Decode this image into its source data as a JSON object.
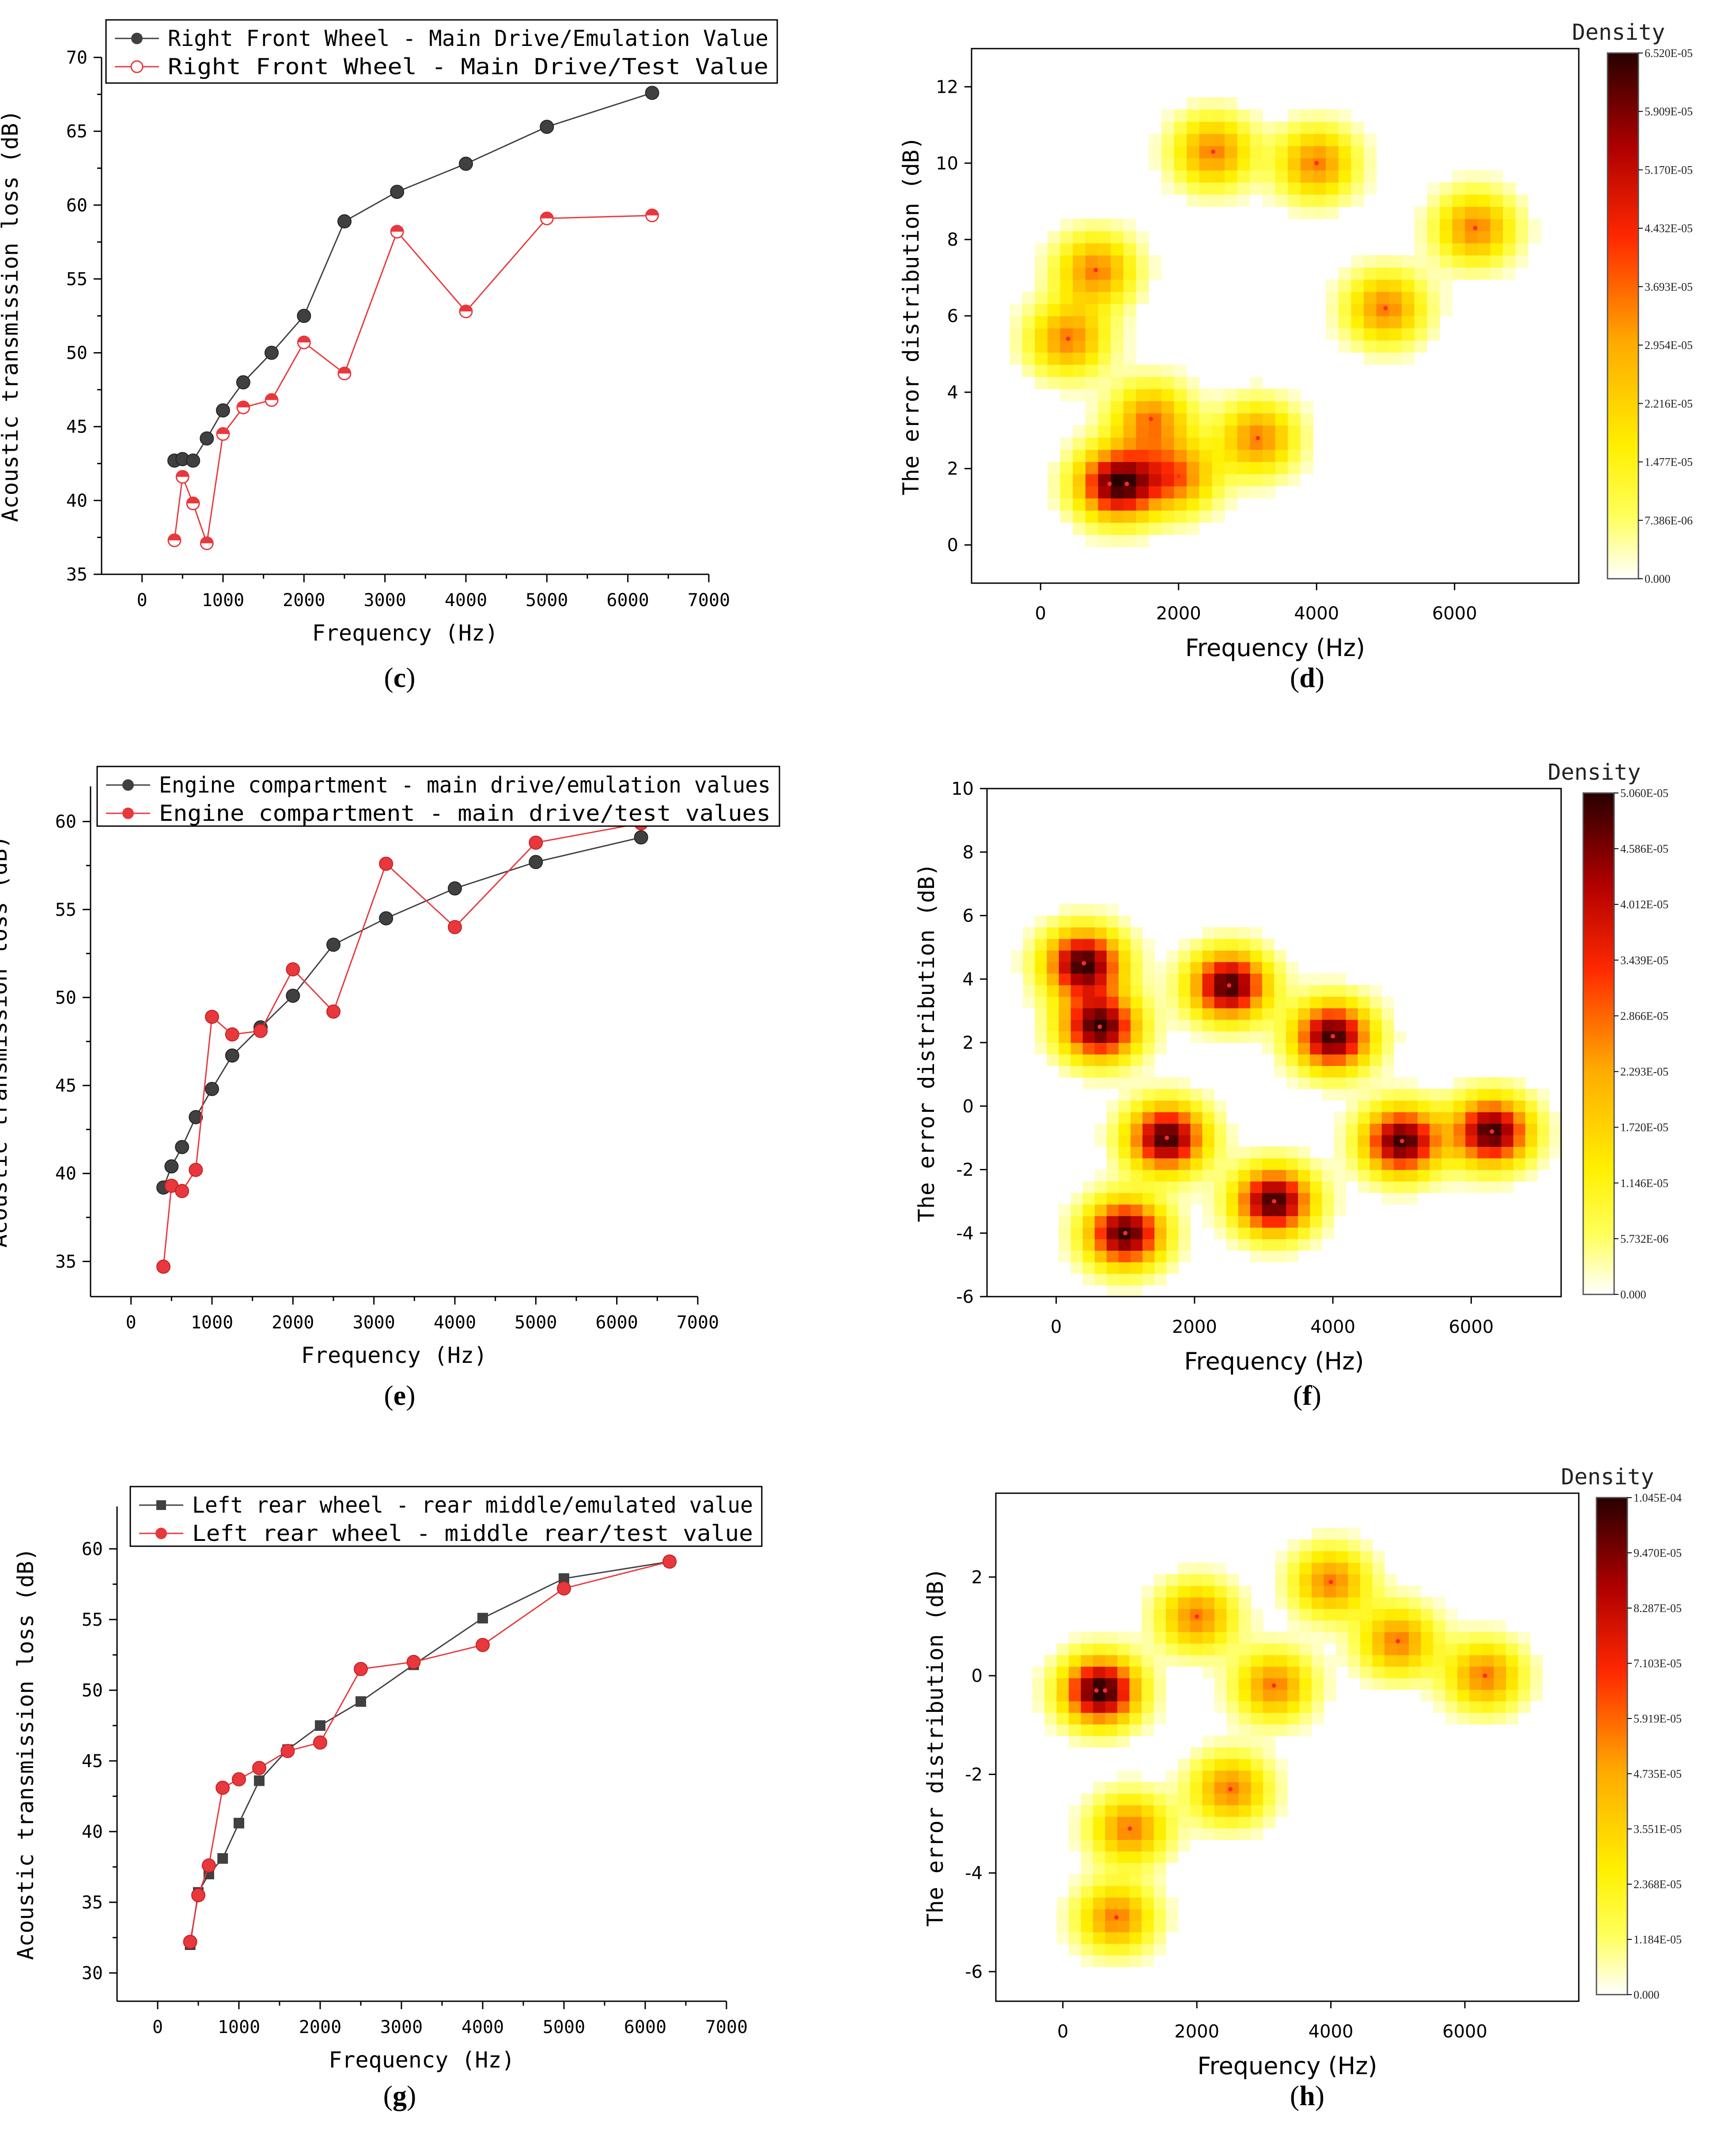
{
  "panels": [
    {
      "label": "(c)",
      "letter": "c",
      "chart_index": 0
    },
    {
      "label": "(d)",
      "letter": "d",
      "chart_index": 1
    },
    {
      "label": "(e)",
      "letter": "e",
      "chart_index": 2
    },
    {
      "label": "(f)",
      "letter": "f",
      "chart_index": 3
    },
    {
      "label": "(g)",
      "letter": "g",
      "chart_index": 4
    },
    {
      "label": "(h)",
      "letter": "h",
      "chart_index": 5
    }
  ],
  "chart_data": [
    {
      "type": "line",
      "panel": "c",
      "title": "",
      "xlabel": "Frequency (Hz)",
      "ylabel": "Acoustic transmission loss (dB)",
      "xlim": [
        -500,
        7000
      ],
      "ylim": [
        35,
        70
      ],
      "xticks": [
        0,
        1000,
        2000,
        3000,
        4000,
        5000,
        6000,
        7000
      ],
      "yticks": [
        35,
        40,
        45,
        50,
        55,
        60,
        65,
        70
      ],
      "legend_position": "top-left",
      "series": [
        {
          "name": "Right Front Wheel - Main Drive/Emulation Value",
          "color": "#404040",
          "marker": "circle",
          "x": [
            400,
            500,
            630,
            800,
            1000,
            1250,
            1600,
            2000,
            2500,
            3150,
            4000,
            5000,
            6300
          ],
          "y": [
            42.7,
            42.8,
            42.7,
            44.2,
            46.1,
            48.0,
            50.0,
            52.5,
            58.9,
            60.9,
            62.8,
            65.3,
            67.6
          ]
        },
        {
          "name": "Right Front Wheel - Main Drive/Test Value",
          "color": "#e8383d",
          "marker": "half-circle",
          "x": [
            400,
            500,
            630,
            800,
            1000,
            1250,
            1600,
            2000,
            2500,
            3150,
            4000,
            5000,
            6300
          ],
          "y": [
            37.3,
            41.6,
            39.8,
            37.1,
            44.5,
            46.3,
            46.8,
            50.7,
            48.6,
            58.2,
            52.8,
            59.1,
            59.3
          ]
        }
      ]
    },
    {
      "type": "heatmap",
      "panel": "d",
      "title": "",
      "xlabel": "Frequency (Hz)",
      "ylabel": "The error distribution (dB)",
      "xlim": [
        -1000,
        7800
      ],
      "ylim": [
        -1.0,
        13.0
      ],
      "xticks": [
        0,
        2000,
        4000,
        6000
      ],
      "yticks": [
        0,
        2,
        4,
        6,
        8,
        10,
        12
      ],
      "colorbar_title": "Density",
      "colorbar_ticks": [
        "0.000",
        "7.386E-06",
        "1.477E-05",
        "2.216E-05",
        "2.954E-05",
        "3.693E-05",
        "4.432E-05",
        "5.170E-05",
        "5.909E-05",
        "6.520E-05"
      ],
      "points": [
        {
          "x": 400,
          "y": 5.4
        },
        {
          "x": 800,
          "y": 7.2
        },
        {
          "x": 1000,
          "y": 1.6
        },
        {
          "x": 1250,
          "y": 1.6
        },
        {
          "x": 1600,
          "y": 3.3
        },
        {
          "x": 2000,
          "y": 1.8
        },
        {
          "x": 2500,
          "y": 10.3
        },
        {
          "x": 3150,
          "y": 2.8
        },
        {
          "x": 4000,
          "y": 10.0
        },
        {
          "x": 5000,
          "y": 6.2
        },
        {
          "x": 6300,
          "y": 8.3
        }
      ]
    },
    {
      "type": "line",
      "panel": "e",
      "title": "",
      "xlabel": "Frequency (Hz)",
      "ylabel": "Acoustic transmission loss (dB)",
      "xlim": [
        -500,
        7000
      ],
      "ylim": [
        33,
        62
      ],
      "xticks": [
        0,
        1000,
        2000,
        3000,
        4000,
        5000,
        6000,
        7000
      ],
      "yticks": [
        35,
        40,
        45,
        50,
        55,
        60
      ],
      "legend_position": "top-left",
      "series": [
        {
          "name": "Engine compartment - main drive/emulation values",
          "color": "#404040",
          "marker": "circle",
          "x": [
            400,
            500,
            630,
            800,
            1000,
            1250,
            1600,
            2000,
            2500,
            3150,
            4000,
            5000,
            6300
          ],
          "y": [
            39.2,
            40.4,
            41.5,
            43.2,
            44.8,
            46.7,
            48.3,
            50.1,
            53.0,
            54.5,
            56.2,
            57.7,
            59.1
          ]
        },
        {
          "name": "Engine compartment - main drive/test values",
          "color": "#e8383d",
          "marker": "circle",
          "x": [
            400,
            500,
            630,
            800,
            1000,
            1250,
            1600,
            2000,
            2500,
            3150,
            4000,
            5000,
            6300
          ],
          "y": [
            34.7,
            39.3,
            39.0,
            40.2,
            48.9,
            47.9,
            48.1,
            51.6,
            49.2,
            57.6,
            54.0,
            58.8,
            59.9
          ]
        }
      ]
    },
    {
      "type": "heatmap",
      "panel": "f",
      "title": "",
      "xlabel": "Frequency (Hz)",
      "ylabel": "The error distribution (dB)",
      "xlim": [
        -1000,
        7300
      ],
      "ylim": [
        -6,
        10
      ],
      "xticks": [
        0,
        2000,
        4000,
        6000
      ],
      "yticks": [
        -6,
        -4,
        -2,
        0,
        2,
        4,
        6,
        8,
        10
      ],
      "colorbar_title": "Density",
      "colorbar_ticks": [
        "0.000",
        "5.732E-06",
        "1.146E-05",
        "1.720E-05",
        "2.293E-05",
        "2.866E-05",
        "3.439E-05",
        "4.012E-05",
        "4.586E-05",
        "5.060E-05"
      ],
      "points": [
        {
          "x": 400,
          "y": 4.5
        },
        {
          "x": 630,
          "y": 2.5
        },
        {
          "x": 1000,
          "y": -4.0
        },
        {
          "x": 1600,
          "y": -1.0
        },
        {
          "x": 2500,
          "y": 3.8
        },
        {
          "x": 3150,
          "y": -3.0
        },
        {
          "x": 4000,
          "y": 2.2
        },
        {
          "x": 5000,
          "y": -1.1
        },
        {
          "x": 6300,
          "y": -0.8
        }
      ]
    },
    {
      "type": "line",
      "panel": "g",
      "title": "",
      "xlabel": "Frequency (Hz)",
      "ylabel": "Acoustic transmission loss (dB)",
      "xlim": [
        -500,
        7000
      ],
      "ylim": [
        28,
        63
      ],
      "xticks": [
        0,
        1000,
        2000,
        3000,
        4000,
        5000,
        6000,
        7000
      ],
      "yticks": [
        30,
        35,
        40,
        45,
        50,
        55,
        60
      ],
      "legend_position": "top-left",
      "series": [
        {
          "name": "Left rear wheel - rear middle/emulated value",
          "color": "#404040",
          "marker": "square",
          "x": [
            400,
            500,
            630,
            800,
            1000,
            1250,
            1600,
            2000,
            2500,
            3150,
            4000,
            5000,
            6300
          ],
          "y": [
            32.0,
            35.7,
            37.0,
            38.1,
            40.6,
            43.6,
            45.8,
            47.5,
            49.2,
            51.8,
            55.1,
            57.9,
            59.1
          ]
        },
        {
          "name": "Left rear wheel - middle rear/test value",
          "color": "#e8383d",
          "marker": "circle",
          "x": [
            400,
            500,
            630,
            800,
            1000,
            1250,
            1600,
            2000,
            2500,
            3150,
            4000,
            5000,
            6300
          ],
          "y": [
            32.2,
            35.5,
            37.6,
            43.1,
            43.7,
            44.5,
            45.7,
            46.3,
            51.5,
            52.0,
            53.2,
            57.2,
            59.1
          ]
        }
      ]
    },
    {
      "type": "heatmap",
      "panel": "h",
      "title": "",
      "xlabel": "Frequency (Hz)",
      "ylabel": "The error distribution (dB)",
      "xlim": [
        -1000,
        7700
      ],
      "ylim": [
        -6.6,
        3.7
      ],
      "xticks": [
        0,
        2000,
        4000,
        6000
      ],
      "yticks": [
        -6,
        -4,
        -2,
        0,
        2
      ],
      "colorbar_title": "Density",
      "colorbar_ticks": [
        "0.000",
        "1.184E-05",
        "2.368E-05",
        "3.551E-05",
        "4.735E-05",
        "5.919E-05",
        "7.103E-05",
        "8.287E-05",
        "9.470E-05",
        "1.045E-04"
      ],
      "points": [
        {
          "x": 500,
          "y": -0.3
        },
        {
          "x": 630,
          "y": -0.3
        },
        {
          "x": 800,
          "y": -4.9
        },
        {
          "x": 1000,
          "y": -3.1
        },
        {
          "x": 2000,
          "y": 1.2
        },
        {
          "x": 2500,
          "y": -2.3
        },
        {
          "x": 3150,
          "y": -0.2
        },
        {
          "x": 4000,
          "y": 1.9
        },
        {
          "x": 5000,
          "y": 0.7
        },
        {
          "x": 6300,
          "y": 0.0
        }
      ]
    }
  ]
}
